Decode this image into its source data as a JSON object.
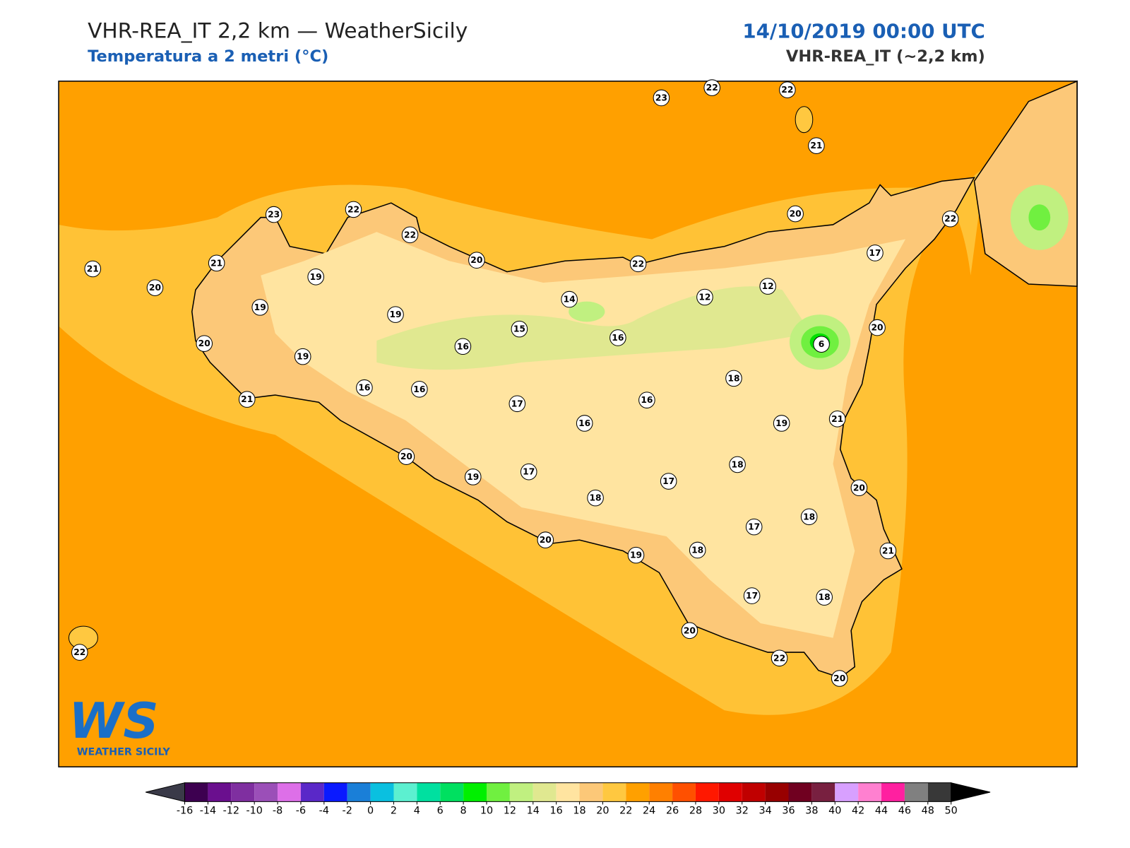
{
  "header": {
    "title": "VHR-REA_IT 2,2 km — WeatherSicily",
    "subtitle": "Temperatura a 2 metri (°C)",
    "date": "14/10/2019 00:00 UTC",
    "model": "VHR-REA_IT (~2,2 km)"
  },
  "logo": {
    "mark": "WS",
    "name": "WEATHER SICILY"
  },
  "stations": [
    23,
    22,
    22,
    21,
    23,
    22,
    22,
    21,
    21,
    20,
    19,
    19,
    20,
    22,
    20,
    22,
    17,
    14,
    12,
    12,
    19,
    15,
    16,
    20,
    6,
    20,
    19,
    16,
    21,
    16,
    16,
    17,
    16,
    16,
    18,
    19,
    21,
    20,
    19,
    17,
    18,
    17,
    18,
    20,
    18,
    17,
    20,
    19,
    18,
    21,
    17,
    18,
    20,
    22,
    20,
    22
  ],
  "colorbar": {
    "ticks": [
      -16,
      -14,
      -12,
      -10,
      -8,
      -6,
      -4,
      -2,
      0,
      2,
      4,
      6,
      8,
      10,
      12,
      14,
      16,
      18,
      20,
      22,
      24,
      26,
      28,
      30,
      32,
      34,
      36,
      38,
      40,
      42,
      44,
      46,
      48,
      50
    ],
    "colors": [
      "#3d0050",
      "#6a0f8e",
      "#7f2fa0",
      "#9b4fb8",
      "#dd6fe8",
      "#5a28c8",
      "#0a1aff",
      "#1a7fd8",
      "#0ac0e0",
      "#5cf0d0",
      "#00e0a0",
      "#00e060",
      "#00f000",
      "#70f040",
      "#c0f080",
      "#e0e890",
      "#ffe4a0",
      "#fcc878",
      "#ffc840",
      "#ffa000",
      "#ff8000",
      "#ff5000",
      "#ff1800",
      "#e00000",
      "#c00000",
      "#980000",
      "#700020",
      "#782040",
      "#d8a0ff",
      "#ff80d0",
      "#ff20a0",
      "#808080",
      "#383838"
    ],
    "under_color": "#3a3a48",
    "over_color": "#000000"
  }
}
